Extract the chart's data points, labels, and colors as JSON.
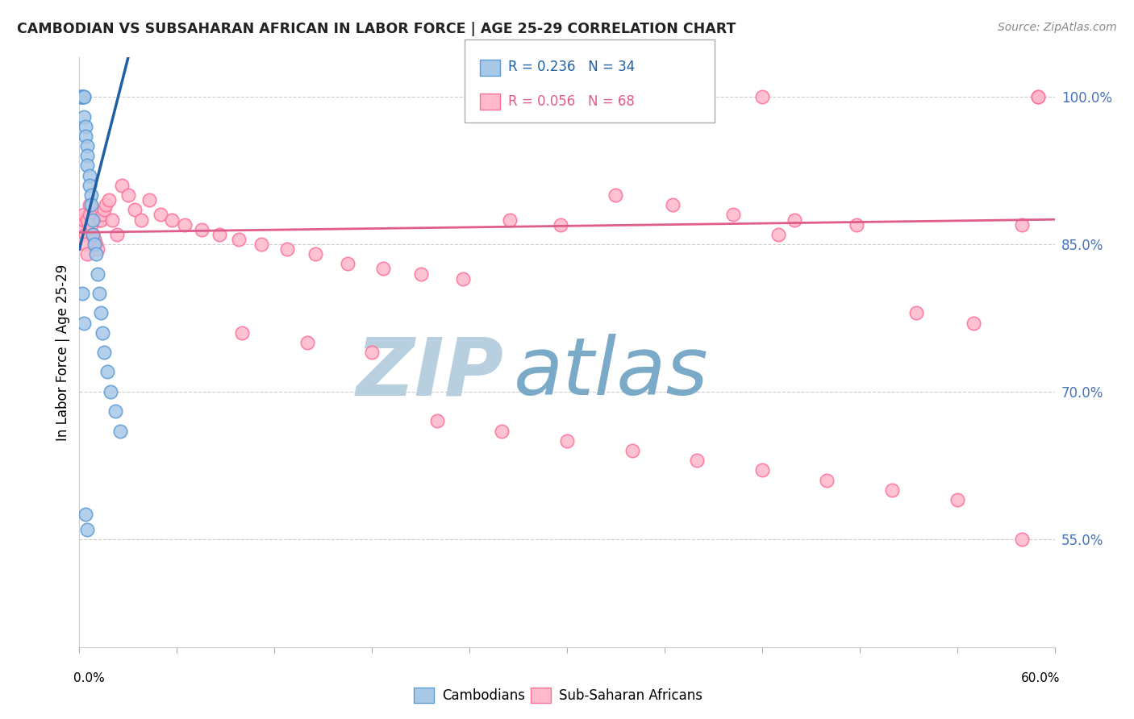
{
  "title": "CAMBODIAN VS SUBSAHARAN AFRICAN IN LABOR FORCE | AGE 25-29 CORRELATION CHART",
  "source": "Source: ZipAtlas.com",
  "ylabel": "In Labor Force | Age 25-29",
  "yticks": [
    0.55,
    0.7,
    0.85,
    1.0
  ],
  "ytick_labels": [
    "55.0%",
    "70.0%",
    "85.0%",
    "100.0%"
  ],
  "xmin": 0.0,
  "xmax": 0.6,
  "ymin": 0.44,
  "ymax": 1.04,
  "legend_blue_r": "R = 0.236",
  "legend_blue_n": "N = 34",
  "legend_pink_r": "R = 0.056",
  "legend_pink_n": "N = 68",
  "camb_x": [
    0.001,
    0.001,
    0.002,
    0.002,
    0.002,
    0.003,
    0.003,
    0.003,
    0.004,
    0.004,
    0.005,
    0.005,
    0.005,
    0.006,
    0.006,
    0.007,
    0.007,
    0.008,
    0.008,
    0.009,
    0.01,
    0.011,
    0.012,
    0.013,
    0.014,
    0.015,
    0.017,
    0.019,
    0.022,
    0.025,
    0.002,
    0.003,
    0.004,
    0.005
  ],
  "camb_y": [
    1.0,
    1.0,
    1.0,
    1.0,
    1.0,
    1.0,
    1.0,
    0.98,
    0.97,
    0.96,
    0.95,
    0.94,
    0.93,
    0.92,
    0.91,
    0.9,
    0.89,
    0.875,
    0.86,
    0.85,
    0.84,
    0.82,
    0.8,
    0.78,
    0.76,
    0.74,
    0.72,
    0.7,
    0.68,
    0.66,
    0.8,
    0.77,
    0.575,
    0.56
  ],
  "sub_x": [
    0.001,
    0.002,
    0.003,
    0.003,
    0.004,
    0.004,
    0.005,
    0.005,
    0.006,
    0.006,
    0.007,
    0.008,
    0.009,
    0.01,
    0.011,
    0.012,
    0.013,
    0.014,
    0.015,
    0.016,
    0.018,
    0.02,
    0.023,
    0.026,
    0.03,
    0.034,
    0.038,
    0.043,
    0.05,
    0.057,
    0.065,
    0.075,
    0.086,
    0.098,
    0.112,
    0.128,
    0.145,
    0.165,
    0.187,
    0.21,
    0.236,
    0.265,
    0.296,
    0.33,
    0.365,
    0.402,
    0.44,
    0.478,
    0.515,
    0.55,
    0.1,
    0.14,
    0.18,
    0.22,
    0.26,
    0.3,
    0.34,
    0.38,
    0.42,
    0.46,
    0.5,
    0.54,
    0.58,
    0.59,
    0.42,
    0.59,
    0.43,
    0.58
  ],
  "sub_y": [
    0.875,
    0.87,
    0.875,
    0.88,
    0.86,
    0.85,
    0.84,
    0.875,
    0.88,
    0.89,
    0.87,
    0.86,
    0.855,
    0.85,
    0.845,
    0.875,
    0.875,
    0.88,
    0.885,
    0.89,
    0.895,
    0.875,
    0.86,
    0.91,
    0.9,
    0.885,
    0.875,
    0.895,
    0.88,
    0.875,
    0.87,
    0.865,
    0.86,
    0.855,
    0.85,
    0.845,
    0.84,
    0.83,
    0.825,
    0.82,
    0.815,
    0.875,
    0.87,
    0.9,
    0.89,
    0.88,
    0.875,
    0.87,
    0.78,
    0.77,
    0.76,
    0.75,
    0.74,
    0.67,
    0.66,
    0.65,
    0.64,
    0.63,
    0.62,
    0.61,
    0.6,
    0.59,
    0.55,
    1.0,
    1.0,
    1.0,
    0.86,
    0.87
  ],
  "blue_face": "#a8c8e8",
  "blue_edge": "#5b9bd5",
  "pink_face": "#ffb8cc",
  "pink_edge": "#ff7097",
  "blue_line": "#1f5fa6",
  "pink_line": "#e05c8a",
  "bg": "#ffffff",
  "wm_color": "#ccdcec",
  "right_tick_color": "#4472c4",
  "title_color": "#222222",
  "source_color": "#888888"
}
